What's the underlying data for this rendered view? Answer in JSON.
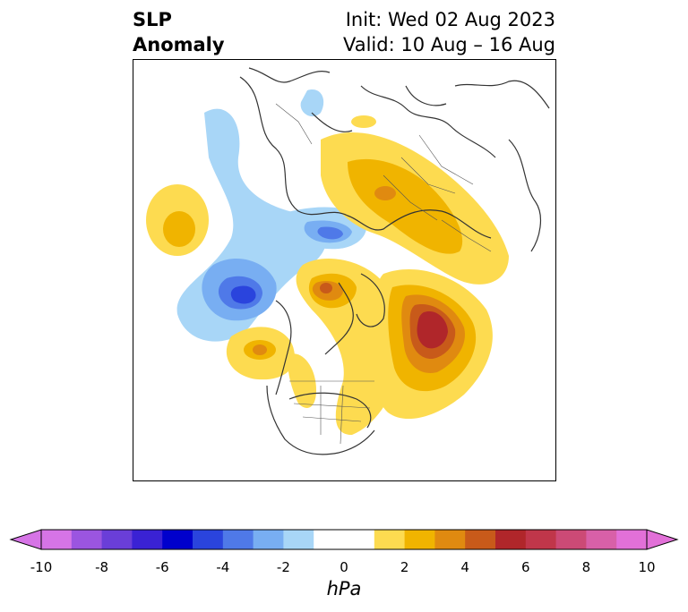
{
  "header": {
    "title_line1": "SLP",
    "title_line2": "Anomaly",
    "init": "Init: Wed 02 Aug 2023",
    "valid": "Valid: 10 Aug – 16 Aug"
  },
  "colorbar": {
    "unit": "hPa",
    "ticks": [
      "-10",
      "-8",
      "-6",
      "-4",
      "-2",
      "0",
      "2",
      "4",
      "6",
      "8",
      "10"
    ],
    "colors": [
      "#d674e6",
      "#9b55e0",
      "#6a3ed8",
      "#3a22d4",
      "#0000cc",
      "#2a44dd",
      "#4f79e8",
      "#78aef2",
      "#a8d6f7",
      "#ffffff",
      "#ffffff",
      "#fddb50",
      "#f0b400",
      "#e08a10",
      "#c85a1a",
      "#b0262a",
      "#c0364a",
      "#cc4a76",
      "#d860a8",
      "#e270d8"
    ]
  }
}
